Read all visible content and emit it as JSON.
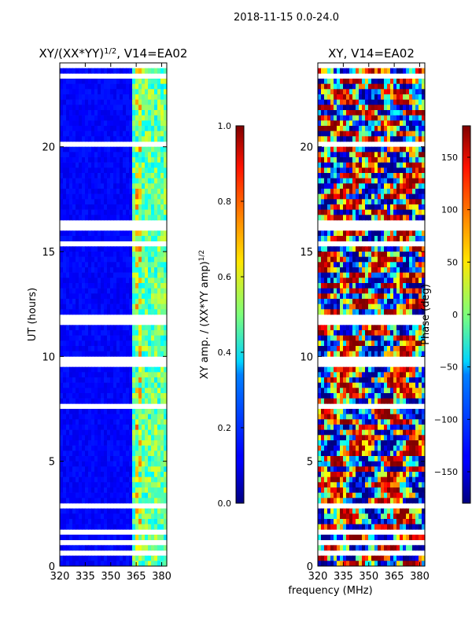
{
  "suptitle": "2018-11-15 0.0-24.0",
  "chart_data": [
    {
      "type": "heatmap",
      "title": "XY/(XX*YY)^1/2, V14=EA02",
      "title_main": "XY/(XX*YY)",
      "title_exp": "1/2",
      "title_tail": ", V14=EA02",
      "xlabel": "",
      "ylabel": "UT (hours)",
      "xlim": [
        320,
        383
      ],
      "ylim": [
        0,
        24
      ],
      "xticks": [
        320,
        335,
        350,
        365,
        380
      ],
      "yticks": [
        0,
        5,
        10,
        15,
        20
      ],
      "colormap": "jet",
      "colorbar": {
        "label": "XY amp. / (XX*YY amp)^1/2",
        "label_main": "XY amp. / (XX*YY amp)",
        "label_exp": "1/2",
        "range": [
          0.0,
          1.0
        ],
        "ticks": [
          0.0,
          0.2,
          0.4,
          0.6,
          0.8,
          1.0
        ],
        "tick_labels": [
          "0.0",
          "0.2",
          "0.4",
          "0.6",
          "0.8",
          "1.0"
        ]
      }
    },
    {
      "type": "heatmap",
      "title": "XY, V14=EA02",
      "xlabel": "frequency (MHz)",
      "ylabel": "",
      "xlim": [
        320,
        383
      ],
      "ylim": [
        0,
        24
      ],
      "xticks": [
        320,
        335,
        350,
        365,
        380
      ],
      "yticks": [
        0,
        5,
        10,
        15,
        20
      ],
      "colormap": "jet",
      "colorbar": {
        "label": "Phase (deg)",
        "range": [
          -180,
          180
        ],
        "ticks": [
          -150,
          -100,
          -50,
          0,
          50,
          100,
          150
        ],
        "tick_labels": [
          "−150",
          "−100",
          "−50",
          "0",
          "50",
          "100",
          "150"
        ]
      }
    }
  ]
}
